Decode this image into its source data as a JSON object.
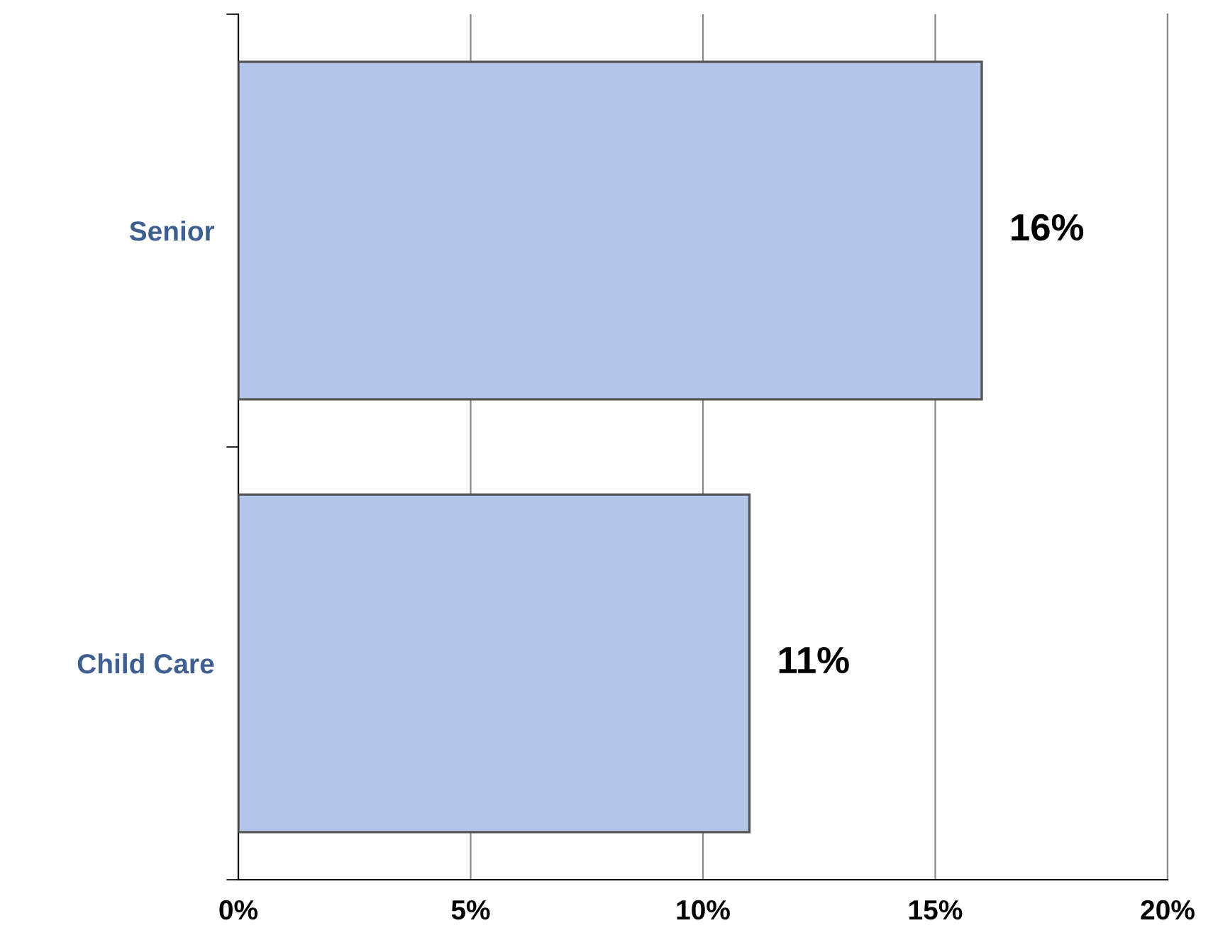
{
  "chart_data": {
    "type": "bar",
    "orientation": "horizontal",
    "categories": [
      "Senior",
      "Child Care"
    ],
    "values": [
      16,
      11
    ],
    "value_labels": [
      "16%",
      "11%"
    ],
    "color": "#b3c5e8",
    "xlim": [
      0,
      20
    ],
    "xticks": [
      {
        "value": 0,
        "label": "0%"
      },
      {
        "value": 5,
        "label": "5%"
      },
      {
        "value": 10,
        "label": "10%"
      },
      {
        "value": 15,
        "label": "15%"
      },
      {
        "value": 20,
        "label": "20%"
      }
    ],
    "grid": "x",
    "legend": false
  }
}
